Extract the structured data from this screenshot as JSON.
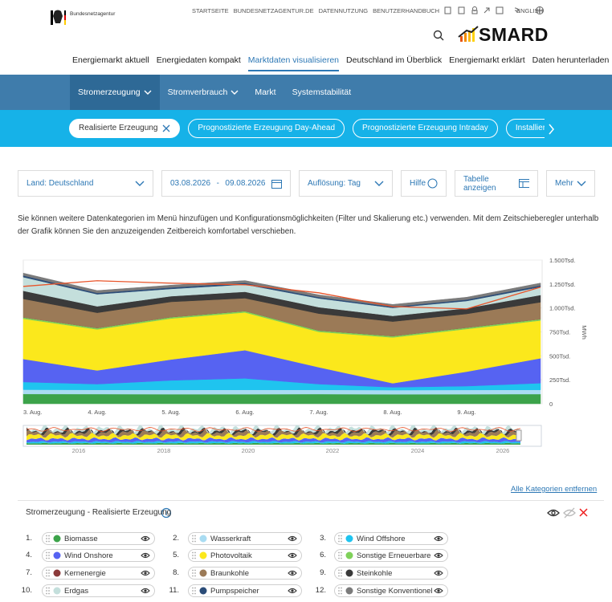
{
  "header": {
    "agency": "Bundesnetzagentur",
    "top_links": [
      "STARTSEITE",
      "BUNDESNETZAGENTUR.DE",
      "DATENNUTZUNG",
      "BENUTZERHANDBUCH"
    ],
    "language": "ENGLISH",
    "logo": "SMARD"
  },
  "main_nav": {
    "items": [
      "Energiemarkt aktuell",
      "Energiedaten kompakt",
      "Marktdaten visualisieren",
      "Deutschland im Überblick",
      "Energiemarkt erklärt",
      "Daten herunterladen"
    ],
    "active": 2
  },
  "sub_nav": {
    "items": [
      "Stromerzeugung",
      "Stromverbrauch",
      "Markt",
      "Systemstabilität"
    ],
    "active": 0
  },
  "tabs": {
    "items": [
      "Realisierte Erzeugung",
      "Prognostizierte Erzeugung Day-Ahead",
      "Prognostizierte Erzeugung Intraday",
      "Installierte Erzeugung"
    ],
    "active": 0
  },
  "filters": {
    "country": "Land: Deutschland",
    "date_from": "03.08.2026",
    "date_sep": "-",
    "date_to": "09.08.2026",
    "resolution": "Auflösung: Tag",
    "help": "Hilfe",
    "table": "Tabelle anzeigen",
    "more": "Mehr"
  },
  "description": "Sie können weitere Datenkategorien im Menü hinzufügen und Konfigurationsmöglichkeiten (Filter und Skalierung etc.) verwenden. Mit dem Zeitschieberegler unterhalb der Grafik können Sie den anzuzeigenden Zeitbereich komfortabel verschieben.",
  "chart_data": {
    "type": "stacked-area",
    "y_label": "MWh",
    "categories": [
      "3. Aug.",
      "4. Aug.",
      "5. Aug.",
      "6. Aug.",
      "7. Aug.",
      "8. Aug.",
      "9. Aug.",
      null
    ],
    "ylim": [
      0,
      1500000
    ],
    "yticks": [
      0,
      {
        "value": 250000,
        "label": "250Tsd."
      },
      {
        "value": 500000,
        "label": "500Tsd."
      },
      {
        "value": 750000,
        "label": "750Tsd."
      },
      {
        "value": 1000000,
        "label": "1.000Tsd."
      },
      {
        "value": 1250000,
        "label": "1.250Tsd."
      },
      {
        "value": 1500000,
        "label": "1.500Tsd."
      }
    ],
    "grid": true,
    "series": [
      {
        "name": "Biomasse",
        "color": "#3ca34a",
        "values": [
          102000,
          101000,
          100000,
          100000,
          101000,
          99000,
          100000,
          101000
        ]
      },
      {
        "name": "Wasserkraft",
        "color": "#a9dcf2",
        "values": [
          45000,
          44000,
          44000,
          45000,
          44000,
          43000,
          44000,
          44000
        ]
      },
      {
        "name": "Wind Offshore",
        "color": "#1fc4ef",
        "values": [
          80000,
          60000,
          100000,
          120000,
          60000,
          30000,
          40000,
          70000
        ]
      },
      {
        "name": "Wind Onshore",
        "color": "#5663f2",
        "values": [
          240000,
          143000,
          218000,
          294000,
          176000,
          42000,
          151000,
          260000
        ]
      },
      {
        "name": "Photovoltaik",
        "color": "#fbe81c",
        "values": [
          420000,
          428000,
          428000,
          394000,
          369000,
          478000,
          445000,
          394000
        ]
      },
      {
        "name": "Sonstige Erneuerbare",
        "color": "#7fd15a",
        "values": [
          15000,
          15000,
          15000,
          15000,
          15000,
          15000,
          15000,
          15000
        ]
      },
      {
        "name": "Kernenergie",
        "color": "#8c3a3a",
        "values": [
          0,
          0,
          0,
          0,
          0,
          0,
          0,
          0
        ]
      },
      {
        "name": "Braunkohle",
        "color": "#9b7a57",
        "values": [
          193000,
          159000,
          159000,
          134000,
          176000,
          151000,
          143000,
          176000
        ]
      },
      {
        "name": "Steinkohle",
        "color": "#3a3a3a",
        "values": [
          84000,
          67000,
          59000,
          67000,
          67000,
          59000,
          59000,
          75000
        ]
      },
      {
        "name": "Erdgas",
        "color": "#c4dfdc",
        "values": [
          143000,
          126000,
          76000,
          76000,
          92000,
          84000,
          76000,
          84000
        ]
      },
      {
        "name": "Pumpspeicher",
        "color": "#2b4c78",
        "values": [
          17000,
          14000,
          15000,
          16000,
          13000,
          12000,
          14000,
          16000
        ]
      },
      {
        "name": "Sonstige Konventionelle",
        "color": "#7b7b7b",
        "values": [
          25000,
          25000,
          24000,
          25000,
          24000,
          24000,
          25000,
          25000
        ]
      }
    ],
    "load": {
      "color": "#e8542a",
      "values": [
        1225000,
        1284000,
        1259000,
        1242000,
        1158000,
        1015000,
        990000,
        1217000
      ]
    }
  },
  "navigator": {
    "labels": [
      "2016",
      "2018",
      "2020",
      "2022",
      "2024",
      "2026"
    ]
  },
  "remove_all": "Alle Kategorien entfernen",
  "legend": {
    "title": "Stromerzeugung - Realisierte Erzeugung",
    "numbers": [
      "1.",
      "2.",
      "3.",
      "4.",
      "5.",
      "6.",
      "7.",
      "8.",
      "9.",
      "10.",
      "11.",
      "12."
    ]
  }
}
